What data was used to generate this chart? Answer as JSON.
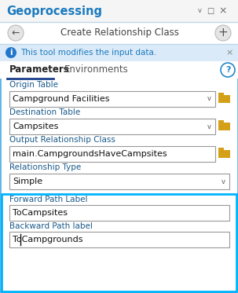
{
  "fig_width": 3.03,
  "fig_height": 3.73,
  "dpi": 100,
  "bg_color": "#ffffff",
  "title_bar_bg": "#f5f5f5",
  "title_text": "Geoprocessing",
  "title_color": "#1a7abf",
  "subtitle_text": "Create Relationship Class",
  "subtitle_color": "#444444",
  "info_bar_color": "#daeaf8",
  "info_text": "This tool modifies the input data.",
  "info_text_color": "#1a7abf",
  "tab_active": "Parameters",
  "tab_inactive": "Environments",
  "tab_active_color": "#222222",
  "tab_inactive_color": "#555555",
  "tab_underline_color": "#1a3f8a",
  "highlight_border_color": "#00b4ff",
  "field_border_color": "#999999",
  "field_text_color": "#111111",
  "label_color": "#1a5a8a",
  "folder_color": "#d4a017",
  "outer_border_color": "#5ab4e8",
  "separator_color": "#c0d8e8",
  "fields": [
    {
      "label": "Origin Table",
      "value": "Campground Facilities",
      "dropdown": true,
      "folder": true
    },
    {
      "label": "Destination Table",
      "value": "Campsites",
      "dropdown": true,
      "folder": true
    },
    {
      "label": "Output Relationship Class",
      "value": "main.CampgroundsHaveCampsites",
      "dropdown": false,
      "folder": true
    },
    {
      "label": "Relationship Type",
      "value": "Simple",
      "dropdown": true,
      "folder": false
    }
  ],
  "highlighted_fields": [
    {
      "label": "Forward Path Label",
      "value": "ToCampsites",
      "cursor": false
    },
    {
      "label": "Backward Path label",
      "value": "ToCampgrounds",
      "cursor": true
    }
  ]
}
